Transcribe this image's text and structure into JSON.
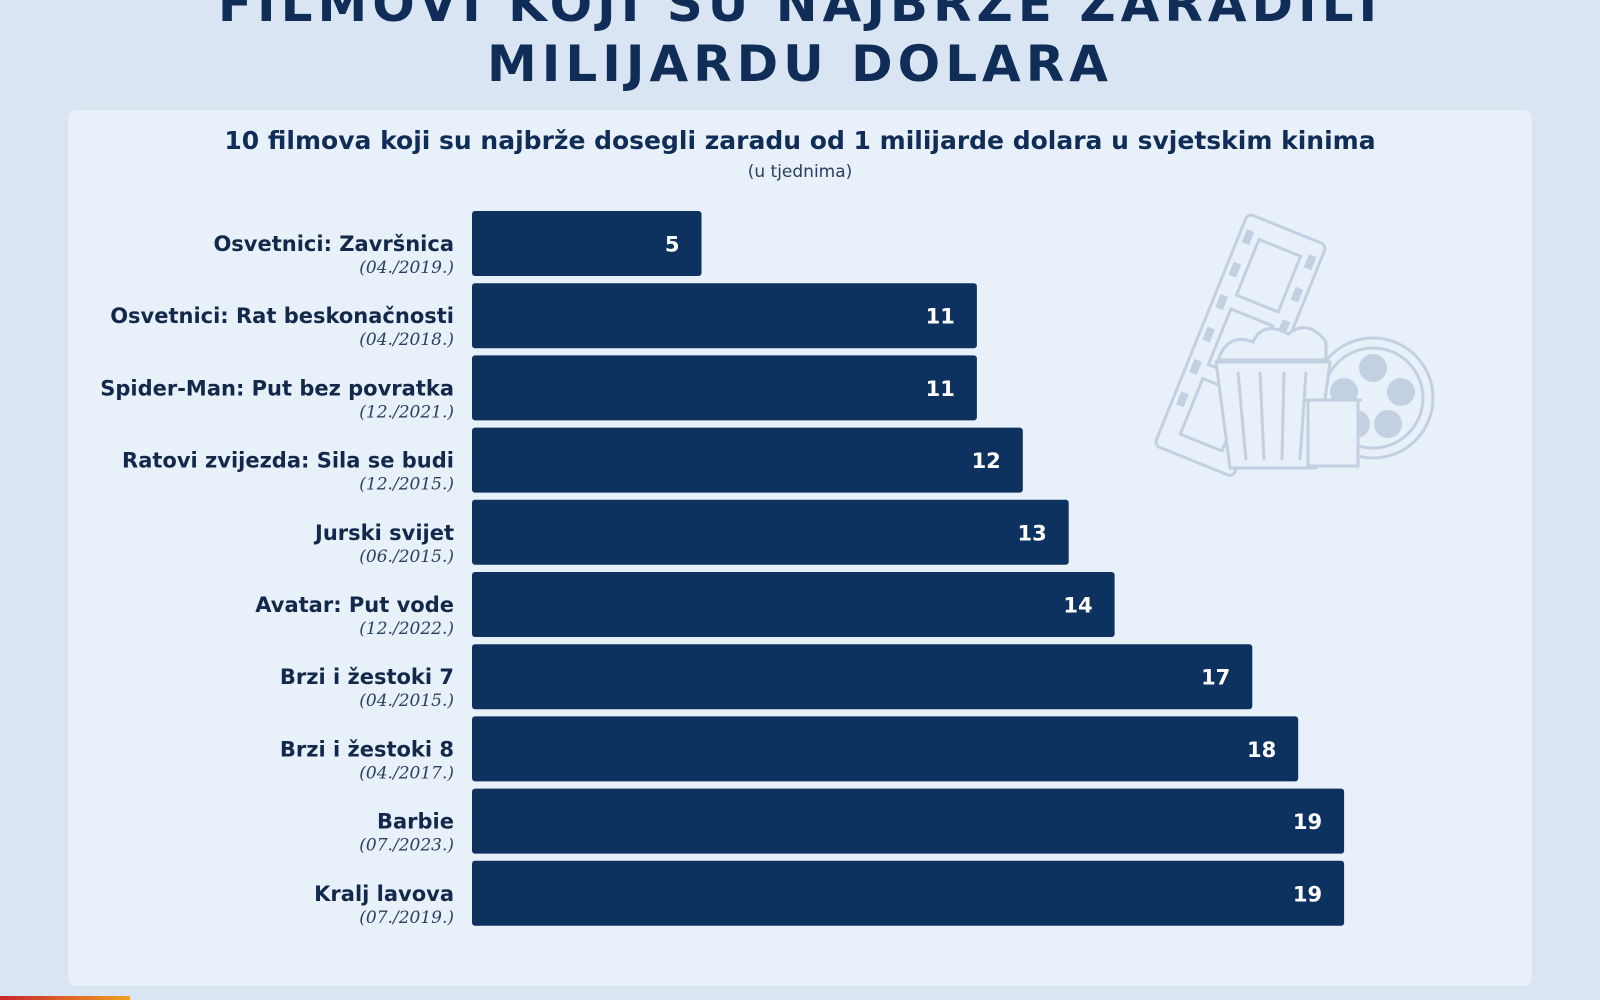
{
  "header": {
    "title_line1": "FILMOVI KOJI SU NAJBRŽE ZARADILI",
    "title_line2": "MILIJARDU DOLARA"
  },
  "colors": {
    "bar": "#0e3260",
    "background": "#d9e5f3",
    "panel": "#e8f0fa",
    "icon": "#b9c9dc"
  },
  "decor": {
    "icon": "film-popcorn-icon"
  },
  "chart_data": {
    "type": "bar",
    "orientation": "horizontal",
    "title": "10 filmova koji su najbrže dosegli zaradu od 1 milijarde dolara u svjetskim kinima",
    "subtitle": "(u tjednima)",
    "xlim": [
      0,
      20
    ],
    "grid": false,
    "categories": [
      "Osvetnici: Završnica",
      "Osvetnici: Rat beskonačnosti",
      "Spider-Man: Put bez povratka",
      "Ratovi zvijezda: Sila se budi",
      "Jurski svijet",
      "Avatar: Put vode",
      "Brzi i žestoki 7",
      "Brzi i žestoki 8",
      "Barbie",
      "Kralj lavova"
    ],
    "dates": [
      "(04./2019.)",
      "(04./2018.)",
      "(12./2021.)",
      "(12./2015.)",
      "(06./2015.)",
      "(12./2022.)",
      "(04./2015.)",
      "(04./2017.)",
      "(07./2023.)",
      "(07./2019.)"
    ],
    "values": [
      5,
      11,
      11,
      12,
      13,
      14,
      17,
      18,
      19,
      19
    ]
  }
}
